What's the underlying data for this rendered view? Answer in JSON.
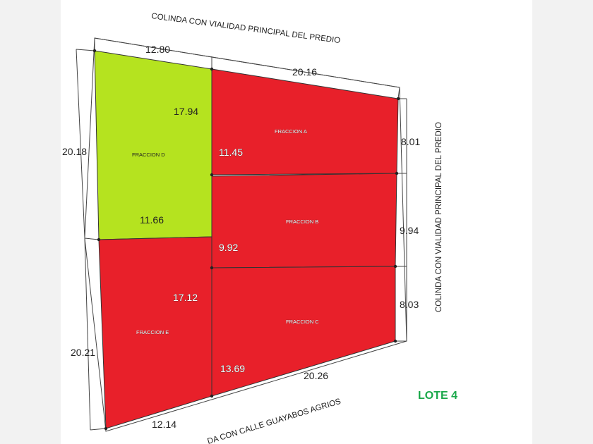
{
  "streets": {
    "top": "COLINDA CON VIALIDAD PRINCIPAL DEL PREDIO",
    "right": "COLINDA CON VIALIDAD PRINCIPAL DEL PREDIO",
    "bottom": "DA CON CALLE GUAYABOS AGRIOS"
  },
  "lot_label": "LOTE 4",
  "fractions": {
    "a": "FRACCION A",
    "b": "FRACCION B",
    "c": "FRACCION C",
    "d": "FRACCION D",
    "e": "FRACCION E"
  },
  "dimensions": {
    "top_left": "12.80",
    "top_right": "20.16",
    "left_upper": "20.18",
    "left_lower": "20.21",
    "right_a": "8.01",
    "right_b": "9.94",
    "right_c": "8.03",
    "bottom_left": "12.14",
    "bottom_right": "20.26",
    "d_inner_right": "17.94",
    "d_inner_bottom": "11.66",
    "a_inner_left": "11.45",
    "b_inner_left": "9.92",
    "e_inner_right": "17.12",
    "c_inner_left": "13.69"
  },
  "colors": {
    "green_fraction": "#b5e31f",
    "red_fraction": "#e8202a",
    "lot_label": "#1aa84a"
  }
}
